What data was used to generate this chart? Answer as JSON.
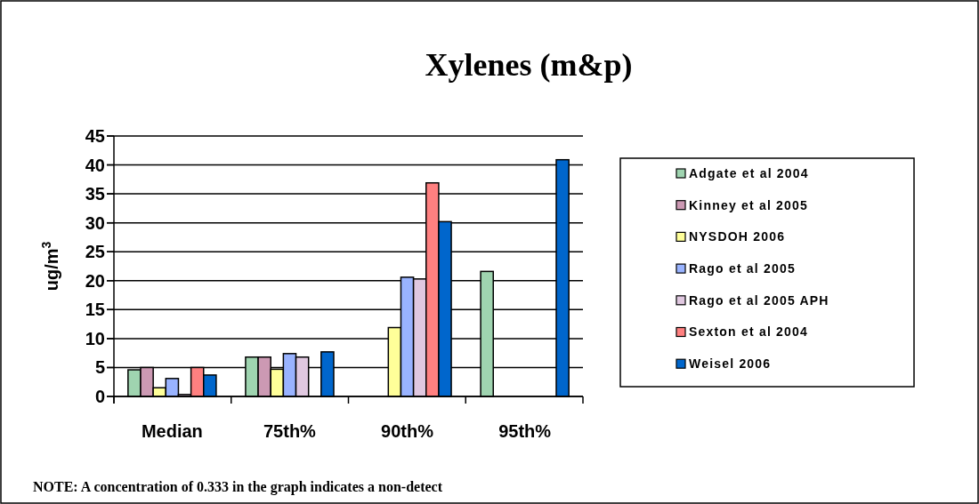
{
  "chart_data": {
    "type": "bar",
    "title": "Xylenes (m&p)",
    "ylabel": "ug/m$^{3}$",
    "categories": [
      "Median",
      "75th%",
      "90th%",
      "95th%"
    ],
    "series": [
      {
        "name": "Adgate et al 2004",
        "color": "#9fd4b0",
        "values": [
          4.6,
          6.8,
          null,
          21.6
        ]
      },
      {
        "name": "Kinney et al 2005",
        "color": "#cc99b3",
        "values": [
          5.0,
          6.8,
          null,
          null
        ]
      },
      {
        "name": "NYSDOH 2006",
        "color": "#ffff99",
        "values": [
          1.5,
          4.7,
          11.9,
          null
        ]
      },
      {
        "name": "Rago et al 2005",
        "color": "#99b3ff",
        "values": [
          3.1,
          7.4,
          20.6,
          null
        ]
      },
      {
        "name": "Rago et al 2005 APH",
        "color": "#e0c8e0",
        "values": [
          0.333,
          6.8,
          20.3,
          null
        ]
      },
      {
        "name": "Sexton et al 2004",
        "color": "#ff8080",
        "values": [
          5.0,
          null,
          36.9,
          null
        ]
      },
      {
        "name": "Weisel 2006",
        "color": "#0066cc",
        "values": [
          3.7,
          7.7,
          30.2,
          40.9
        ]
      }
    ],
    "ylim": [
      0,
      45
    ],
    "yticks": [
      0,
      5,
      10,
      15,
      20,
      25,
      30,
      35,
      40,
      45
    ],
    "grid": "y",
    "legend": "right",
    "annotations": [
      "NOTE: A concentration of 0.333 in the graph indicates a non-detect"
    ]
  }
}
